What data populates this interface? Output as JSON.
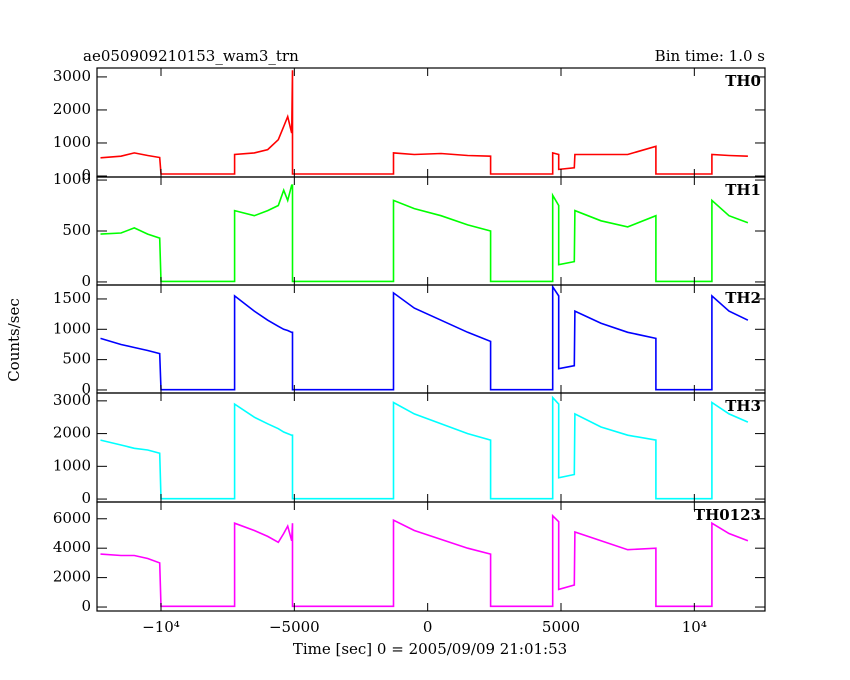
{
  "chart_data": {
    "type": "line",
    "title": "ae050909210153_wam3_trn",
    "subtitle": "Bin time: 1.0 s",
    "ylabel": "Counts/sec",
    "xlabel": "Time [sec] 0 = 2005/09/09 21:01:53",
    "xlim": [
      -12400,
      12650
    ],
    "xticks": [
      {
        "value": -10000,
        "label": "−10⁴"
      },
      {
        "value": -5000,
        "label": "−5000"
      },
      0,
      5000,
      {
        "value": 10000,
        "label": "10⁴"
      }
    ],
    "x": [
      -12270,
      -11500,
      -11000,
      -10500,
      -10050,
      -10000,
      -7240,
      -7240,
      -6500,
      -6000,
      -5600,
      -5400,
      -5250,
      -5100,
      -5070,
      -5070,
      -1280,
      -1280,
      -500,
      500,
      1500,
      2360,
      2360,
      4690,
      4690,
      4915,
      4915,
      5500,
      5520,
      6500,
      7500,
      8560,
      8560,
      10660,
      10660,
      11300,
      12010
    ],
    "panels": [
      {
        "label": "TH0",
        "color": "#ff0000",
        "ylim": [
          -30,
          3270
        ],
        "yticks": [
          0,
          1000,
          2000,
          3000
        ],
        "values": [
          550,
          600,
          700,
          620,
          560,
          60,
          60,
          650,
          700,
          800,
          1100,
          1500,
          1800,
          1300,
          3200,
          60,
          60,
          700,
          650,
          680,
          620,
          600,
          60,
          60,
          700,
          650,
          200,
          250,
          650,
          650,
          650,
          900,
          60,
          60,
          650,
          620,
          600
        ]
      },
      {
        "label": "TH1",
        "color": "#00ff00",
        "ylim": [
          -30,
          1030
        ],
        "yticks": [
          0,
          500,
          1000
        ],
        "values": [
          470,
          480,
          530,
          470,
          430,
          5,
          5,
          700,
          650,
          700,
          750,
          900,
          800,
          950,
          950,
          5,
          5,
          800,
          720,
          650,
          560,
          500,
          5,
          5,
          850,
          750,
          170,
          200,
          700,
          600,
          540,
          650,
          5,
          5,
          800,
          650,
          580
        ]
      },
      {
        "label": "TH2",
        "color": "#0000ff",
        "ylim": [
          -50,
          1730
        ],
        "yticks": [
          0,
          500,
          1000,
          1500
        ],
        "values": [
          850,
          750,
          700,
          650,
          600,
          5,
          5,
          1550,
          1300,
          1150,
          1050,
          1000,
          980,
          950,
          950,
          5,
          5,
          1600,
          1350,
          1150,
          950,
          800,
          5,
          5,
          1700,
          1550,
          350,
          400,
          1300,
          1100,
          950,
          850,
          5,
          5,
          1550,
          1300,
          1150
        ]
      },
      {
        "label": "TH3",
        "color": "#00ffff",
        "ylim": [
          -90,
          3240
        ],
        "yticks": [
          0,
          1000,
          2000,
          3000
        ],
        "values": [
          1800,
          1650,
          1550,
          1500,
          1400,
          10,
          10,
          2900,
          2500,
          2300,
          2150,
          2050,
          2000,
          1950,
          1950,
          10,
          10,
          2950,
          2600,
          2300,
          2000,
          1800,
          10,
          10,
          3100,
          2900,
          650,
          750,
          2600,
          2200,
          1950,
          1800,
          10,
          10,
          2950,
          2600,
          2350
        ]
      },
      {
        "label": "TH0123",
        "color": "#ff00ff",
        "ylim": [
          -270,
          7140
        ],
        "yticks": [
          0,
          2000,
          4000,
          6000
        ],
        "values": [
          3600,
          3500,
          3500,
          3300,
          3000,
          50,
          50,
          5700,
          5200,
          4800,
          4400,
          5000,
          5500,
          4500,
          5700,
          50,
          50,
          5900,
          5200,
          4600,
          4000,
          3600,
          50,
          50,
          6200,
          5800,
          1200,
          1500,
          5100,
          4500,
          3900,
          4000,
          50,
          50,
          5700,
          5000,
          4500
        ]
      }
    ]
  }
}
